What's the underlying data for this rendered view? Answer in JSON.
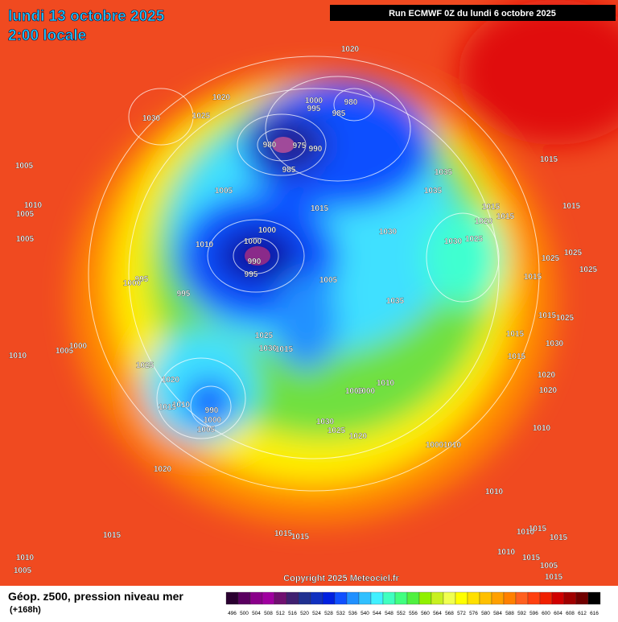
{
  "header": {
    "title": "lundi 13 octobre 2025",
    "subtitle": "2:00 locale",
    "run": "Run ECMWF 0Z du lundi 6 octobre 2025"
  },
  "map": {
    "isobar_labels": [
      "1020",
      "1020",
      "1030",
      "1025",
      "1000",
      "995",
      "980",
      "985",
      "980",
      "975",
      "990",
      "985",
      "1005",
      "1005",
      "1035",
      "1035",
      "1015",
      "1010",
      "1005",
      "1005",
      "1000",
      "1000",
      "1010",
      "990",
      "995",
      "1030",
      "1030",
      "1025",
      "1015",
      "1020",
      "1015",
      "1015",
      "1015",
      "1025",
      "1025",
      "1025",
      "1015",
      "1005",
      "995",
      "1000",
      "995",
      "1035",
      "1015",
      "1025",
      "1015",
      "1030",
      "1015",
      "1010",
      "1005",
      "1000",
      "1025",
      "1030",
      "1015",
      "1025",
      "1020",
      "1020",
      "1010",
      "1020",
      "1005",
      "1000",
      "1015",
      "1010",
      "990",
      "1000",
      "1005",
      "1030",
      "1025",
      "1020",
      "1010",
      "1000",
      "1010",
      "1020",
      "1010",
      "1015",
      "1015",
      "1015",
      "1010",
      "1015",
      "1015",
      "1010",
      "1010",
      "1005",
      "1015",
      "1005",
      "1015"
    ],
    "copyright": "Copyright 2025 Meteociel.fr"
  },
  "footer": {
    "title": "Géop. z500, pression niveau mer",
    "subtitle": "(+168h)"
  },
  "legend": {
    "levels": [
      496,
      500,
      504,
      508,
      512,
      516,
      520,
      524,
      528,
      532,
      536,
      540,
      544,
      548,
      552,
      556,
      560,
      564,
      568,
      572,
      576,
      580,
      584,
      588,
      592,
      596,
      600,
      604,
      608,
      612,
      616
    ],
    "colors": [
      "#2a0030",
      "#5a0060",
      "#8a008a",
      "#a000a0",
      "#701070",
      "#402070",
      "#203090",
      "#1030c0",
      "#0020e0",
      "#1050ff",
      "#2090ff",
      "#30c0ff",
      "#40f0ff",
      "#40ffc0",
      "#40ff80",
      "#50f040",
      "#90f000",
      "#c8f020",
      "#f0ff50",
      "#ffff00",
      "#ffe000",
      "#ffc000",
      "#ffa000",
      "#ff8000",
      "#ff6020",
      "#ff4010",
      "#f02000",
      "#d00000",
      "#a00000",
      "#700000",
      "#000000"
    ]
  }
}
